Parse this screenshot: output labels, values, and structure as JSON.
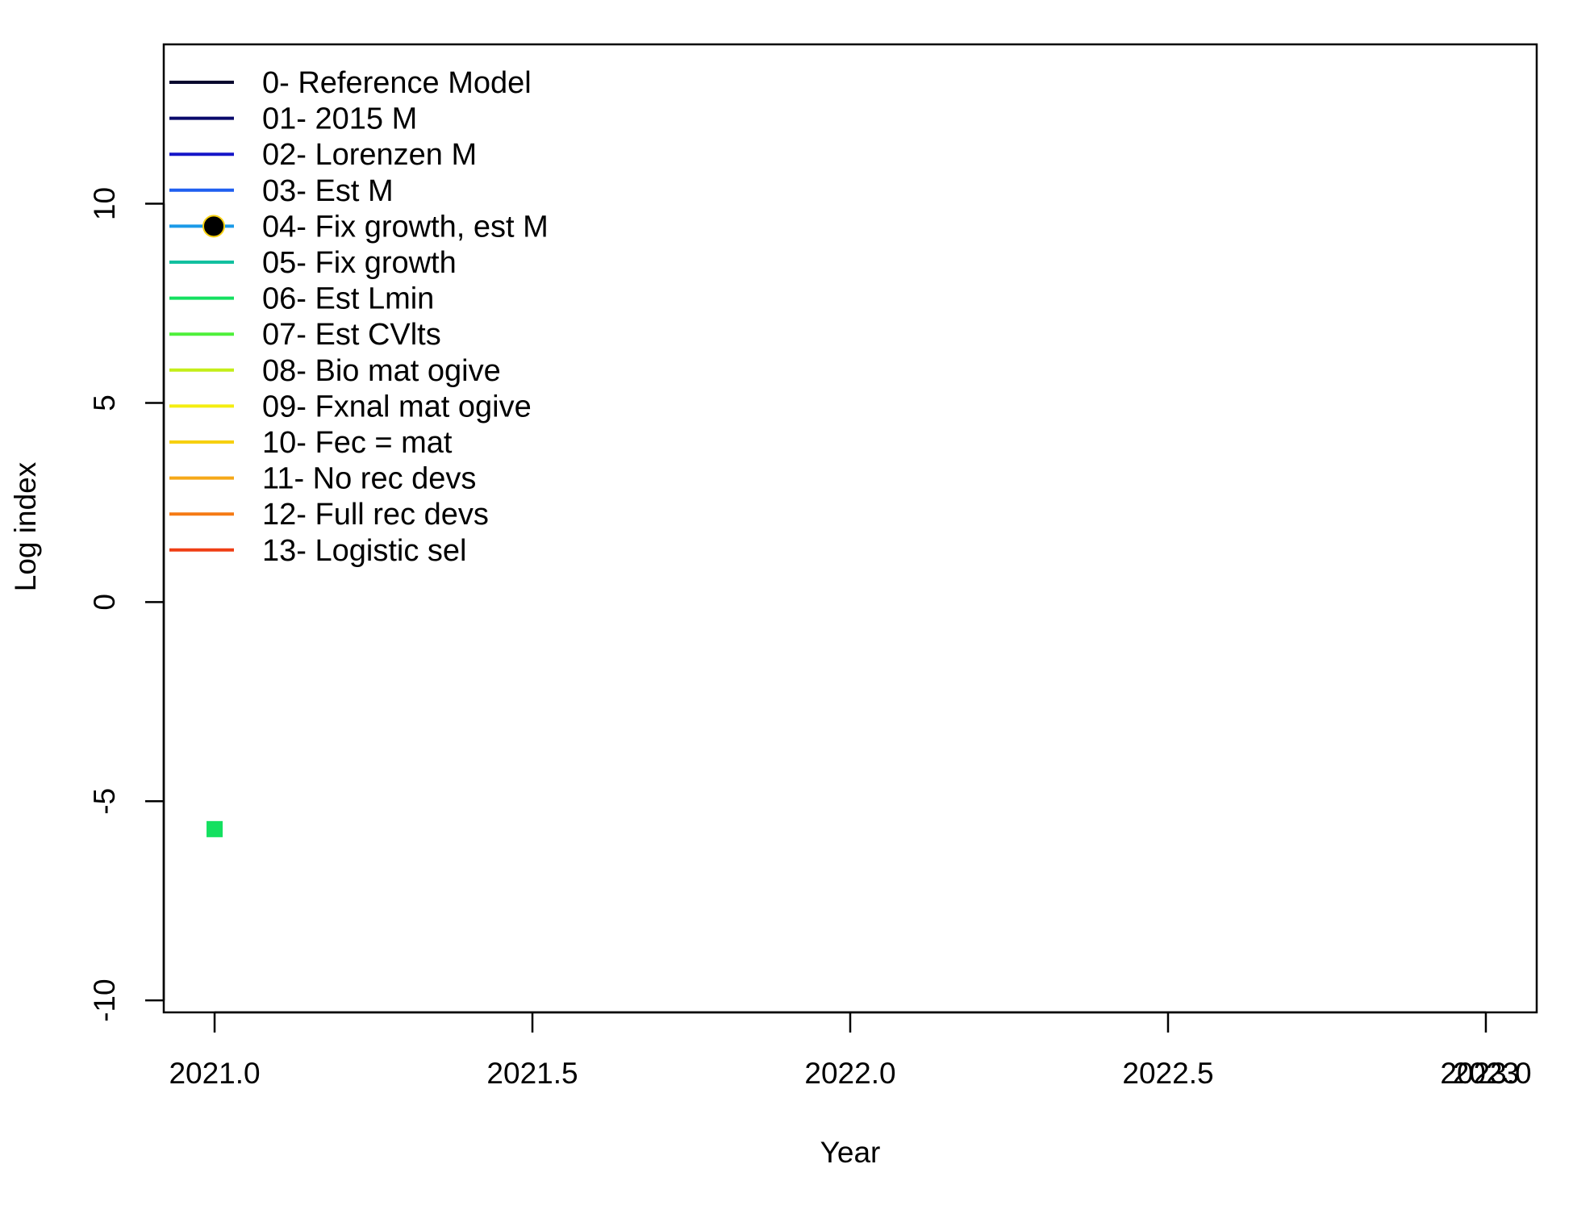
{
  "chart_data": {
    "type": "scatter",
    "title": "",
    "xlabel": "Year",
    "ylabel": "Log index",
    "xlim": [
      2020.92,
      2023.08
    ],
    "ylim": [
      -10.3,
      14.0
    ],
    "x_ticks": [
      2021.0,
      2021.5,
      2022.0,
      2022.5,
      2023.0
    ],
    "x_tick_labels": [
      "2021.0",
      "2021.5",
      "2022.0",
      "2022.5",
      "2023.0"
    ],
    "x_tick_overlay_labels": [
      "2023"
    ],
    "y_ticks": [
      -10,
      -5,
      0,
      5,
      10
    ],
    "y_tick_labels": [
      "-10",
      "-5",
      "0",
      "5",
      "10"
    ],
    "grid": false,
    "legend_position": "top-left",
    "series": [
      {
        "name": "0- Reference Model",
        "color": "#08082e",
        "x": [],
        "y": []
      },
      {
        "name": "01- 2015 M",
        "color": "#0a0a6b",
        "x": [],
        "y": []
      },
      {
        "name": "02- Lorenzen M",
        "color": "#1515c8",
        "x": [],
        "y": []
      },
      {
        "name": "03- Est M",
        "color": "#1f5ff0",
        "x": [],
        "y": []
      },
      {
        "name": "04- Fix growth, est M",
        "color": "#1a9ae8",
        "x": [],
        "y": []
      },
      {
        "name": "05- Fix growth",
        "color": "#12c0a0",
        "x": [],
        "y": []
      },
      {
        "name": "06- Est Lmin",
        "color": "#14e060",
        "x": [],
        "y": []
      },
      {
        "name": "07- Est CVlts",
        "color": "#4ef03a",
        "x": [],
        "y": []
      },
      {
        "name": "08- Bio mat ogive",
        "color": "#c4ee18",
        "x": [],
        "y": []
      },
      {
        "name": "09- Fxnal mat ogive",
        "color": "#f4ee10",
        "x": [],
        "y": []
      },
      {
        "name": "10- Fec = mat",
        "color": "#f6d010",
        "x": [],
        "y": []
      },
      {
        "name": "11- No rec devs",
        "color": "#f5a818",
        "x": [],
        "y": []
      },
      {
        "name": "12- Full rec devs",
        "color": "#f57a14",
        "x": [],
        "y": []
      },
      {
        "name": "13- Logistic sel",
        "color": "#ef3e14",
        "x": [],
        "y": []
      }
    ],
    "points": [
      {
        "x": 2021.0,
        "y": -5.7,
        "shape": "square",
        "color": "#14e060"
      }
    ],
    "legend_marker": {
      "series_index": 4,
      "shape": "circle",
      "color": "#000000",
      "outline": "#f6d010"
    }
  }
}
